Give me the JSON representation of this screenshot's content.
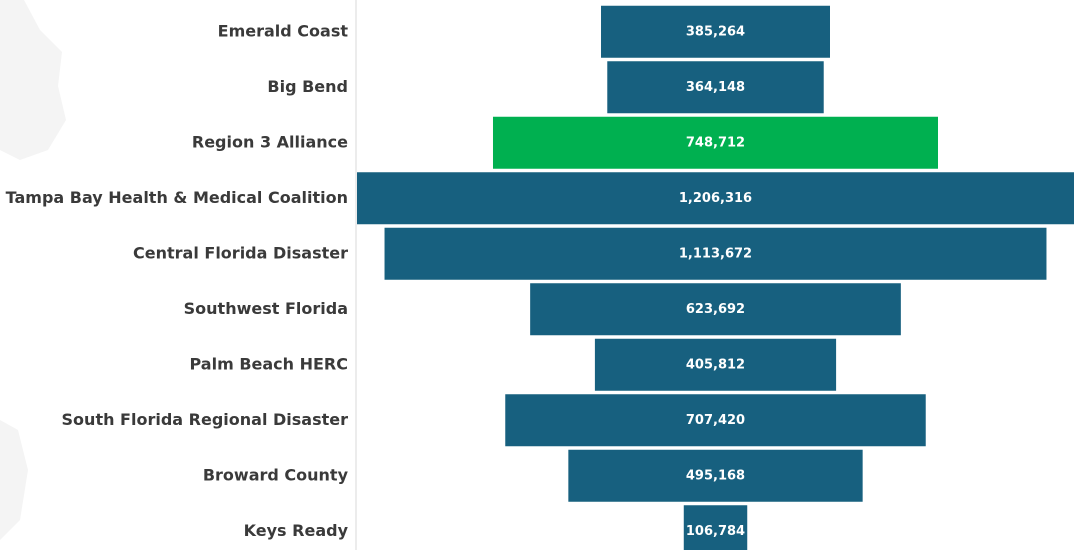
{
  "chart_data": {
    "type": "bar",
    "orientation": "horizontal-centered",
    "categories": [
      "Emerald Coast",
      "Big Bend",
      "Region 3 Alliance",
      "Tampa Bay Health & Medical Coalition",
      "Central Florida Disaster",
      "Southwest Florida",
      "Palm Beach HERC",
      "South Florida Regional Disaster",
      "Broward County",
      "Keys Ready"
    ],
    "values": [
      385264,
      364148,
      748712,
      1206316,
      1113672,
      623692,
      405812,
      707420,
      495168,
      106784
    ],
    "value_labels": [
      "385,264",
      "364,148",
      "748,712",
      "1,206,316",
      "1,113,672",
      "623,692",
      "405,812",
      "707,420",
      "495,168",
      "106,784"
    ],
    "highlight_index": 2,
    "colors": {
      "bar": "#17607f",
      "highlight": "#00b050",
      "category_text": "#3a3a3a",
      "value_text": "#ffffff",
      "axis_line": "#d9d9d9"
    },
    "legend": "none",
    "grid": false
  }
}
